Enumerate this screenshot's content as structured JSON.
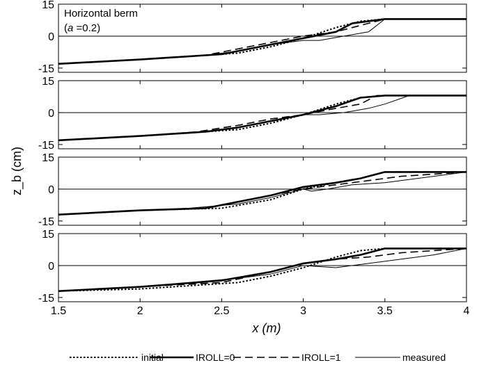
{
  "chart_data": {
    "type": "line",
    "title": "",
    "xlabel": "x (m)",
    "ylabel": "z_b (cm)",
    "xlim": [
      1.5,
      4
    ],
    "ylim": [
      -17,
      15
    ],
    "x_ticks": [
      1.5,
      2,
      2.5,
      3,
      3.5,
      4
    ],
    "x_tick_labels": [
      "1.5",
      "2",
      "2.5",
      "3",
      "3.5",
      "4"
    ],
    "y_ticks": [
      -15,
      0,
      15
    ],
    "y_tick_labels": [
      "-15",
      "0",
      "15"
    ],
    "panel_annotation": {
      "line1": "Horizontal berm",
      "line2_prefix": "(",
      "line2_var": "a",
      "line2_rest": " =0.2)"
    },
    "grid": false,
    "legend_position": "bottom",
    "legend": [
      {
        "label": "initial",
        "style": "dotted"
      },
      {
        "label": "IROLL=0",
        "style": "thick"
      },
      {
        "label": "IROLL=1",
        "style": "dashed"
      },
      {
        "label": "measured",
        "style": "thin"
      }
    ],
    "panels": [
      {
        "series": [
          {
            "name": "initial",
            "x": [
              1.5,
              2.0,
              2.4,
              2.6,
              2.8,
              3.0,
              3.2,
              3.35,
              3.5,
              4.0
            ],
            "y": [
              -13,
              -11,
              -9,
              -8,
              -5,
              -1,
              4,
              7,
              8,
              8
            ]
          },
          {
            "name": "IROLL=0",
            "x": [
              1.5,
              2.0,
              2.5,
              2.8,
              3.0,
              3.2,
              3.3,
              3.5,
              4.0
            ],
            "y": [
              -13,
              -11,
              -8.5,
              -4,
              -1,
              2,
              6,
              8,
              8
            ]
          },
          {
            "name": "IROLL=1",
            "x": [
              1.5,
              2.0,
              2.4,
              2.6,
              2.8,
              3.0,
              3.2,
              3.35,
              3.5,
              4.0
            ],
            "y": [
              -13,
              -11,
              -9,
              -6,
              -3,
              0,
              2,
              5,
              8,
              8
            ]
          },
          {
            "name": "measured",
            "x": [
              1.5,
              2.0,
              2.4,
              2.6,
              2.8,
              3.0,
              3.1,
              3.25,
              3.4,
              3.5,
              4.0
            ],
            "y": [
              -13,
              -11,
              -9,
              -7,
              -4,
              -2,
              -2,
              0,
              2,
              8,
              8
            ]
          }
        ]
      },
      {
        "series": [
          {
            "name": "initial",
            "x": [
              1.5,
              2.0,
              2.4,
              2.6,
              2.8,
              3.0,
              3.2,
              3.35,
              3.5,
              4.0
            ],
            "y": [
              -13,
              -11,
              -9,
              -8,
              -5,
              -1,
              4,
              7,
              8,
              8
            ]
          },
          {
            "name": "IROLL=0",
            "x": [
              1.5,
              2.0,
              2.4,
              2.6,
              2.8,
              3.0,
              3.2,
              3.35,
              3.5,
              4.0
            ],
            "y": [
              -13,
              -11,
              -9,
              -7,
              -4,
              -1,
              3,
              7,
              8,
              8
            ]
          },
          {
            "name": "IROLL=1",
            "x": [
              1.5,
              2.0,
              2.35,
              2.6,
              2.8,
              3.0,
              3.2,
              3.35,
              3.45,
              3.5,
              4.0
            ],
            "y": [
              -13,
              -11,
              -9,
              -6,
              -3,
              -1,
              2,
              4,
              8,
              8,
              8
            ]
          },
          {
            "name": "measured",
            "x": [
              1.5,
              2.0,
              2.4,
              2.6,
              2.8,
              3.0,
              3.1,
              3.25,
              3.4,
              3.5,
              3.65,
              4.0
            ],
            "y": [
              -13,
              -11,
              -9,
              -7,
              -4,
              -1,
              -1,
              0,
              2,
              4,
              8,
              8
            ]
          }
        ]
      },
      {
        "series": [
          {
            "name": "initial",
            "x": [
              1.5,
              2.0,
              2.5,
              2.8,
              3.0,
              3.2,
              3.35,
              3.5,
              4.0
            ],
            "y": [
              -12,
              -10,
              -9,
              -5,
              0,
              3,
              5,
              8,
              8
            ]
          },
          {
            "name": "IROLL=0",
            "x": [
              1.5,
              2.0,
              2.4,
              2.6,
              2.8,
              3.0,
              3.2,
              3.35,
              3.5,
              4.0
            ],
            "y": [
              -12,
              -10,
              -9,
              -6,
              -3,
              1,
              3,
              5,
              8,
              8
            ]
          },
          {
            "name": "IROLL=1",
            "x": [
              1.5,
              2.0,
              2.4,
              2.6,
              2.8,
              3.0,
              3.2,
              3.4,
              3.6,
              4.0
            ],
            "y": [
              -12,
              -10,
              -9,
              -6,
              -3,
              0,
              2,
              4,
              6,
              8
            ]
          },
          {
            "name": "measured",
            "x": [
              1.5,
              2.0,
              2.3,
              2.6,
              2.8,
              3.0,
              3.05,
              3.15,
              3.3,
              3.5,
              3.7,
              4.0
            ],
            "y": [
              -12,
              -10,
              -9,
              -7,
              -4,
              0,
              -1,
              0,
              2,
              3,
              5,
              8
            ]
          }
        ]
      },
      {
        "series": [
          {
            "name": "initial",
            "x": [
              1.5,
              2.0,
              2.4,
              2.6,
              2.8,
              3.0,
              3.2,
              3.35,
              3.5,
              4.0
            ],
            "y": [
              -12,
              -11,
              -9,
              -8,
              -5,
              -1,
              4,
              7,
              8,
              8
            ]
          },
          {
            "name": "IROLL=0",
            "x": [
              1.5,
              2.0,
              2.5,
              2.8,
              3.0,
              3.2,
              3.35,
              3.5,
              4.0
            ],
            "y": [
              -12,
              -10,
              -7,
              -3,
              1,
              3,
              5,
              8,
              8
            ]
          },
          {
            "name": "IROLL=1",
            "x": [
              1.5,
              2.0,
              2.5,
              2.8,
              3.0,
              3.2,
              3.4,
              3.6,
              4.0
            ],
            "y": [
              -12,
              -10,
              -8,
              -3,
              1,
              3,
              4,
              6,
              8
            ]
          },
          {
            "name": "measured",
            "x": [
              1.5,
              2.0,
              2.3,
              2.6,
              2.8,
              3.0,
              3.2,
              3.4,
              3.6,
              3.8,
              4.0
            ],
            "y": [
              -12,
              -10,
              -8,
              -6,
              -4,
              0,
              -1,
              1,
              3,
              5,
              8
            ]
          }
        ]
      }
    ]
  }
}
